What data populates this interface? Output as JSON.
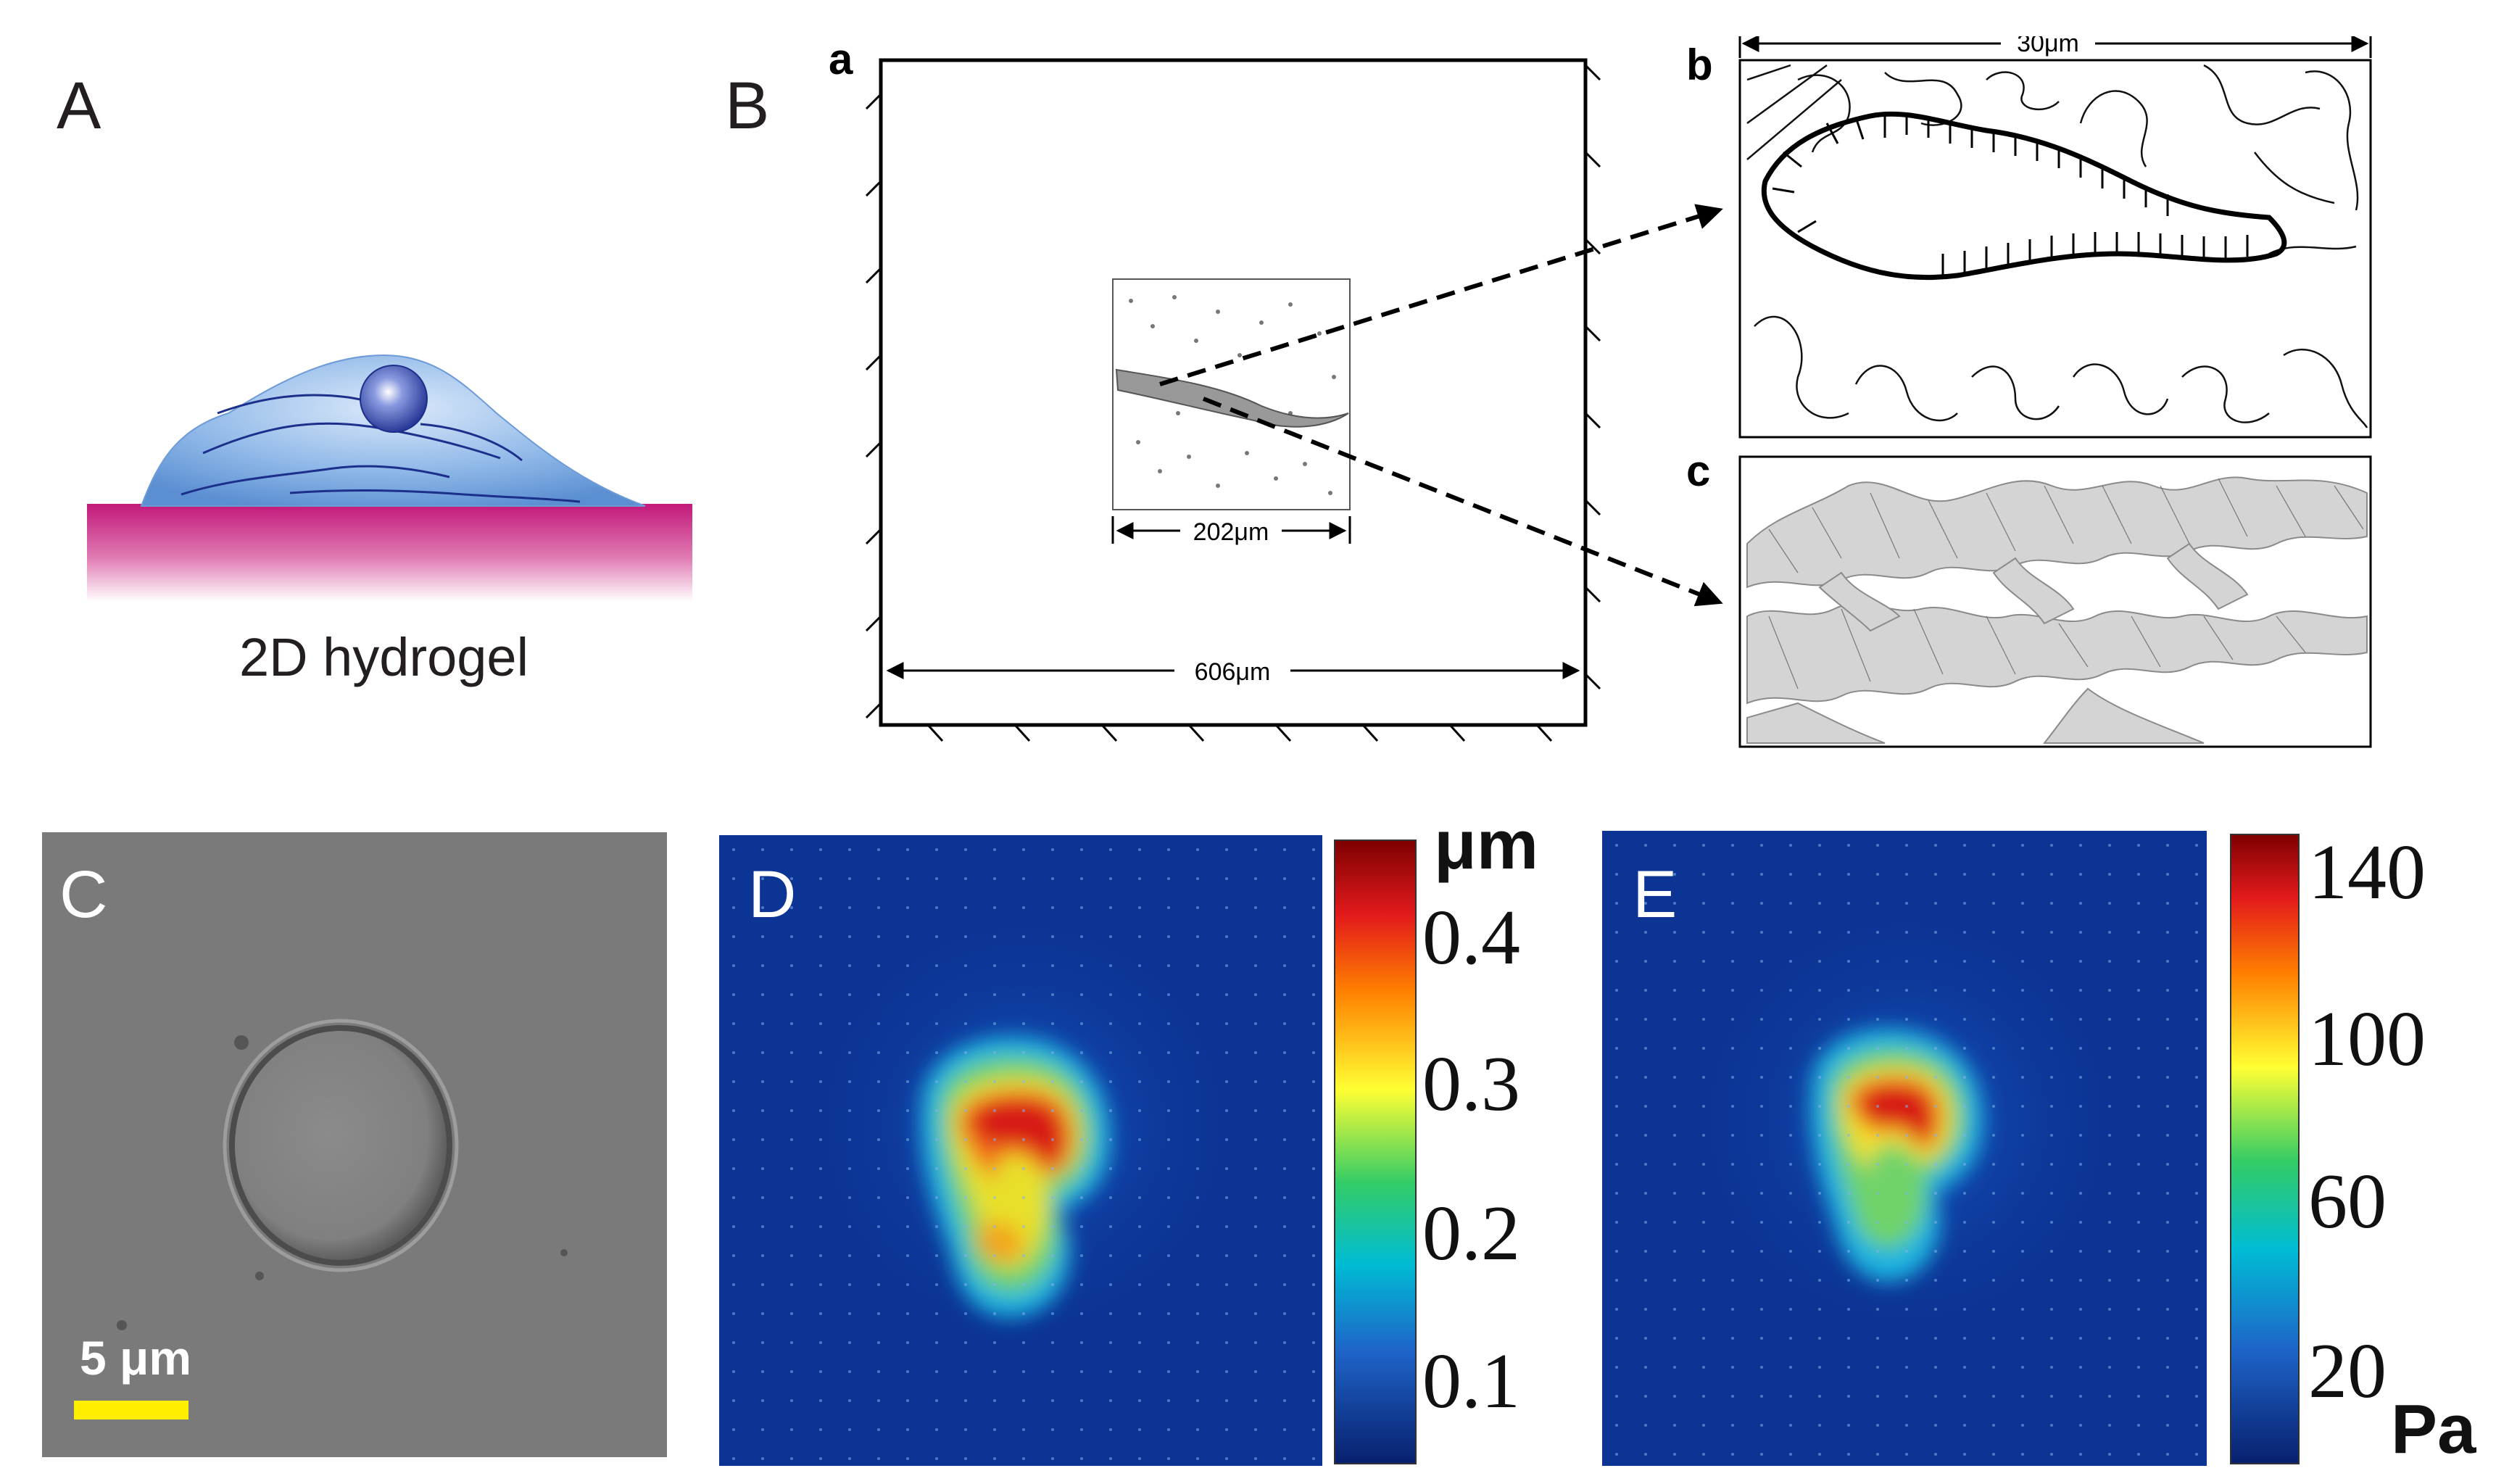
{
  "panel_labels": {
    "A": "A",
    "B": "B",
    "C": "C",
    "D": "D",
    "E": "E"
  },
  "sub_labels": {
    "a": "a",
    "b": "b",
    "c": "c"
  },
  "panel_a": {
    "caption": "2D hydrogel"
  },
  "panel_b": {
    "outer_dimension": "606μm",
    "inner_dimension": "202μm",
    "detail_dimension": "30μm"
  },
  "panel_c": {
    "scale_bar_label": "5 μm",
    "scale_bar_color": "#ffee00"
  },
  "panel_d": {
    "colorbar_unit": "μm",
    "colorbar_ticks": [
      "0.4",
      "0.3",
      "0.2",
      "0.1"
    ]
  },
  "panel_e": {
    "colorbar_unit": "Pa",
    "colorbar_ticks": [
      "140",
      "100",
      "60",
      "20"
    ]
  },
  "colors": {
    "hydrogel": "#c81e7a",
    "cell": "#5b94d6",
    "nucleus": "#2a3f9b",
    "heatmap_low": "#0a2f8c",
    "heatmap_high": "#c81414"
  }
}
